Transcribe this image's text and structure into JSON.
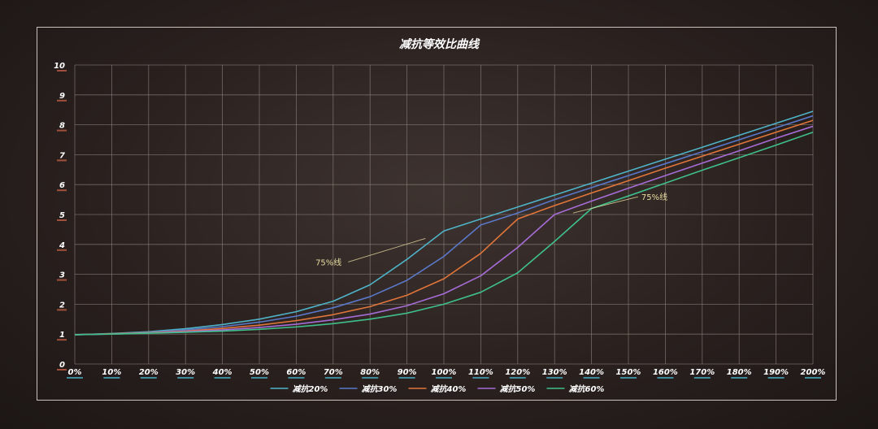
{
  "chart_data": {
    "type": "line",
    "title": "减抗等效比曲线",
    "xlabel": "",
    "ylabel": "",
    "x_ticks": [
      "0%",
      "10%",
      "20%",
      "30%",
      "40%",
      "50%",
      "60%",
      "70%",
      "80%",
      "90%",
      "100%",
      "110%",
      "120%",
      "130%",
      "140%",
      "150%",
      "160%",
      "170%",
      "180%",
      "190%",
      "200%"
    ],
    "y_ticks": [
      "0",
      "1",
      "2",
      "3",
      "4",
      "5",
      "6",
      "7",
      "8",
      "9",
      "10"
    ],
    "xlim": [
      0,
      200
    ],
    "ylim": [
      0,
      10
    ],
    "grid": true,
    "legend_position": "bottom",
    "x": [
      0,
      10,
      20,
      30,
      40,
      50,
      60,
      70,
      80,
      90,
      100,
      110,
      120,
      130,
      140,
      150,
      160,
      170,
      180,
      190,
      200
    ],
    "series": [
      {
        "name": "减抗20%",
        "color": "#4fb3c8",
        "values": [
          0.98,
          1.02,
          1.08,
          1.18,
          1.32,
          1.5,
          1.75,
          2.1,
          2.65,
          3.5,
          4.45,
          4.85,
          5.25,
          5.65,
          6.05,
          6.45,
          6.85,
          7.25,
          7.65,
          8.05,
          8.45
        ]
      },
      {
        "name": "减抗30%",
        "color": "#5a78c8",
        "values": [
          0.98,
          1.01,
          1.06,
          1.14,
          1.25,
          1.4,
          1.6,
          1.88,
          2.25,
          2.8,
          3.6,
          4.65,
          5.05,
          5.5,
          5.9,
          6.3,
          6.7,
          7.1,
          7.5,
          7.9,
          8.3
        ]
      },
      {
        "name": "减抗40%",
        "color": "#e0753a",
        "values": [
          0.98,
          1.01,
          1.05,
          1.1,
          1.19,
          1.3,
          1.45,
          1.65,
          1.92,
          2.3,
          2.85,
          3.7,
          4.85,
          5.3,
          5.72,
          6.13,
          6.55,
          6.95,
          7.35,
          7.75,
          8.15
        ]
      },
      {
        "name": "减抗50%",
        "color": "#a66cd6",
        "values": [
          0.98,
          1.0,
          1.04,
          1.08,
          1.14,
          1.22,
          1.33,
          1.48,
          1.67,
          1.95,
          2.35,
          2.95,
          3.9,
          5.0,
          5.45,
          5.88,
          6.3,
          6.72,
          7.13,
          7.55,
          7.95
        ]
      },
      {
        "name": "减抗60%",
        "color": "#3fbf8a",
        "values": [
          0.98,
          1.0,
          1.03,
          1.06,
          1.1,
          1.16,
          1.24,
          1.35,
          1.5,
          1.7,
          2.0,
          2.4,
          3.05,
          4.1,
          5.2,
          5.62,
          6.05,
          6.48,
          6.9,
          7.32,
          7.75
        ]
      }
    ],
    "annotations": [
      {
        "text": "75%线",
        "x1": 95,
        "y1": 4.2,
        "x2": 135,
        "y2": 5.05,
        "color": "#e8dca0"
      }
    ]
  }
}
